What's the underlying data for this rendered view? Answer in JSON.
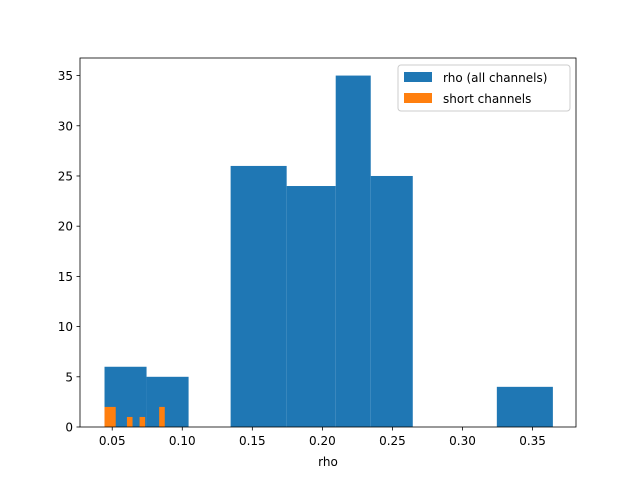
{
  "chart_data": {
    "type": "bar",
    "title": "",
    "xlabel": "rho",
    "ylabel": "",
    "xlim": [
      0.027,
      0.381
    ],
    "ylim": [
      0,
      36.75
    ],
    "x_ticks": [
      0.05,
      0.1,
      0.15,
      0.2,
      0.25,
      0.3,
      0.35
    ],
    "x_tick_labels": [
      "0.05",
      "0.10",
      "0.15",
      "0.20",
      "0.25",
      "0.30",
      "0.35"
    ],
    "y_ticks": [
      0,
      5,
      10,
      15,
      20,
      25,
      30,
      35
    ],
    "y_tick_labels": [
      "0",
      "5",
      "10",
      "15",
      "20",
      "25",
      "30",
      "35"
    ],
    "grid": false,
    "legend_position": "top-right",
    "series": [
      {
        "name": "rho (all channels)",
        "color": "#1f77b4",
        "bins": [
          {
            "x0": 0.0445,
            "x1": 0.0745,
            "value": 6
          },
          {
            "x0": 0.0745,
            "x1": 0.1045,
            "value": 5
          },
          {
            "x0": 0.1045,
            "x1": 0.1345,
            "value": 0
          },
          {
            "x0": 0.1345,
            "x1": 0.1745,
            "value": 26
          },
          {
            "x0": 0.1745,
            "x1": 0.2095,
            "value": 24
          },
          {
            "x0": 0.2095,
            "x1": 0.2345,
            "value": 35
          },
          {
            "x0": 0.2345,
            "x1": 0.2645,
            "value": 25
          },
          {
            "x0": 0.2645,
            "x1": 0.2945,
            "value": 0
          },
          {
            "x0": 0.2945,
            "x1": 0.3245,
            "value": 0
          },
          {
            "x0": 0.3245,
            "x1": 0.3645,
            "value": 4
          }
        ]
      },
      {
        "name": "short channels",
        "color": "#ff7f0e",
        "bins": [
          {
            "x0": 0.0445,
            "x1": 0.0525,
            "value": 2
          },
          {
            "x0": 0.0525,
            "x1": 0.0605,
            "value": 0
          },
          {
            "x0": 0.0605,
            "x1": 0.0645,
            "value": 1
          },
          {
            "x0": 0.0645,
            "x1": 0.0695,
            "value": 0
          },
          {
            "x0": 0.0695,
            "x1": 0.0735,
            "value": 1
          },
          {
            "x0": 0.0735,
            "x1": 0.0835,
            "value": 0
          },
          {
            "x0": 0.0835,
            "x1": 0.0875,
            "value": 2
          }
        ]
      }
    ]
  }
}
